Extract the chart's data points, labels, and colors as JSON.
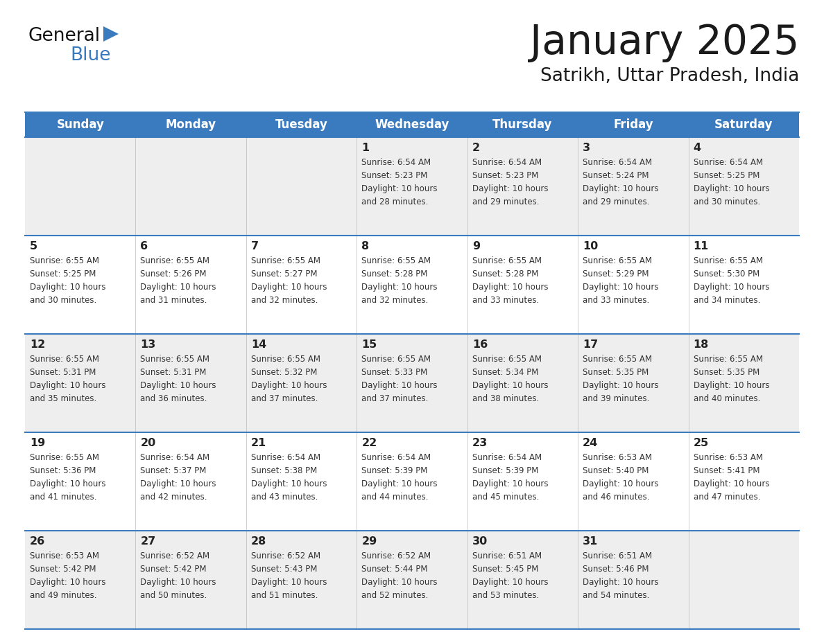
{
  "title": "January 2025",
  "subtitle": "Satrikh, Uttar Pradesh, India",
  "header_bg": "#3a7abf",
  "header_text_color": "#ffffff",
  "day_names": [
    "Sunday",
    "Monday",
    "Tuesday",
    "Wednesday",
    "Thursday",
    "Friday",
    "Saturday"
  ],
  "cell_bg_row0": "#eeeeee",
  "cell_bg_row1": "#ffffff",
  "cell_bg_row2": "#eeeeee",
  "cell_bg_row3": "#ffffff",
  "cell_bg_row4": "#eeeeee",
  "cell_border_color": "#3a7abf",
  "text_color": "#333333",
  "day_number_color": "#222222",
  "background_color": "#ffffff",
  "logo_general_color": "#111111",
  "logo_blue_color": "#3a7abf",
  "logo_triangle_color": "#3a7abf",
  "title_color": "#1a1a1a",
  "subtitle_color": "#1a1a1a",
  "calendar_data": [
    [
      {
        "day": null,
        "info": null
      },
      {
        "day": null,
        "info": null
      },
      {
        "day": null,
        "info": null
      },
      {
        "day": 1,
        "info": "Sunrise: 6:54 AM\nSunset: 5:23 PM\nDaylight: 10 hours\nand 28 minutes."
      },
      {
        "day": 2,
        "info": "Sunrise: 6:54 AM\nSunset: 5:23 PM\nDaylight: 10 hours\nand 29 minutes."
      },
      {
        "day": 3,
        "info": "Sunrise: 6:54 AM\nSunset: 5:24 PM\nDaylight: 10 hours\nand 29 minutes."
      },
      {
        "day": 4,
        "info": "Sunrise: 6:54 AM\nSunset: 5:25 PM\nDaylight: 10 hours\nand 30 minutes."
      }
    ],
    [
      {
        "day": 5,
        "info": "Sunrise: 6:55 AM\nSunset: 5:25 PM\nDaylight: 10 hours\nand 30 minutes."
      },
      {
        "day": 6,
        "info": "Sunrise: 6:55 AM\nSunset: 5:26 PM\nDaylight: 10 hours\nand 31 minutes."
      },
      {
        "day": 7,
        "info": "Sunrise: 6:55 AM\nSunset: 5:27 PM\nDaylight: 10 hours\nand 32 minutes."
      },
      {
        "day": 8,
        "info": "Sunrise: 6:55 AM\nSunset: 5:28 PM\nDaylight: 10 hours\nand 32 minutes."
      },
      {
        "day": 9,
        "info": "Sunrise: 6:55 AM\nSunset: 5:28 PM\nDaylight: 10 hours\nand 33 minutes."
      },
      {
        "day": 10,
        "info": "Sunrise: 6:55 AM\nSunset: 5:29 PM\nDaylight: 10 hours\nand 33 minutes."
      },
      {
        "day": 11,
        "info": "Sunrise: 6:55 AM\nSunset: 5:30 PM\nDaylight: 10 hours\nand 34 minutes."
      }
    ],
    [
      {
        "day": 12,
        "info": "Sunrise: 6:55 AM\nSunset: 5:31 PM\nDaylight: 10 hours\nand 35 minutes."
      },
      {
        "day": 13,
        "info": "Sunrise: 6:55 AM\nSunset: 5:31 PM\nDaylight: 10 hours\nand 36 minutes."
      },
      {
        "day": 14,
        "info": "Sunrise: 6:55 AM\nSunset: 5:32 PM\nDaylight: 10 hours\nand 37 minutes."
      },
      {
        "day": 15,
        "info": "Sunrise: 6:55 AM\nSunset: 5:33 PM\nDaylight: 10 hours\nand 37 minutes."
      },
      {
        "day": 16,
        "info": "Sunrise: 6:55 AM\nSunset: 5:34 PM\nDaylight: 10 hours\nand 38 minutes."
      },
      {
        "day": 17,
        "info": "Sunrise: 6:55 AM\nSunset: 5:35 PM\nDaylight: 10 hours\nand 39 minutes."
      },
      {
        "day": 18,
        "info": "Sunrise: 6:55 AM\nSunset: 5:35 PM\nDaylight: 10 hours\nand 40 minutes."
      }
    ],
    [
      {
        "day": 19,
        "info": "Sunrise: 6:55 AM\nSunset: 5:36 PM\nDaylight: 10 hours\nand 41 minutes."
      },
      {
        "day": 20,
        "info": "Sunrise: 6:54 AM\nSunset: 5:37 PM\nDaylight: 10 hours\nand 42 minutes."
      },
      {
        "day": 21,
        "info": "Sunrise: 6:54 AM\nSunset: 5:38 PM\nDaylight: 10 hours\nand 43 minutes."
      },
      {
        "day": 22,
        "info": "Sunrise: 6:54 AM\nSunset: 5:39 PM\nDaylight: 10 hours\nand 44 minutes."
      },
      {
        "day": 23,
        "info": "Sunrise: 6:54 AM\nSunset: 5:39 PM\nDaylight: 10 hours\nand 45 minutes."
      },
      {
        "day": 24,
        "info": "Sunrise: 6:53 AM\nSunset: 5:40 PM\nDaylight: 10 hours\nand 46 minutes."
      },
      {
        "day": 25,
        "info": "Sunrise: 6:53 AM\nSunset: 5:41 PM\nDaylight: 10 hours\nand 47 minutes."
      }
    ],
    [
      {
        "day": 26,
        "info": "Sunrise: 6:53 AM\nSunset: 5:42 PM\nDaylight: 10 hours\nand 49 minutes."
      },
      {
        "day": 27,
        "info": "Sunrise: 6:52 AM\nSunset: 5:42 PM\nDaylight: 10 hours\nand 50 minutes."
      },
      {
        "day": 28,
        "info": "Sunrise: 6:52 AM\nSunset: 5:43 PM\nDaylight: 10 hours\nand 51 minutes."
      },
      {
        "day": 29,
        "info": "Sunrise: 6:52 AM\nSunset: 5:44 PM\nDaylight: 10 hours\nand 52 minutes."
      },
      {
        "day": 30,
        "info": "Sunrise: 6:51 AM\nSunset: 5:45 PM\nDaylight: 10 hours\nand 53 minutes."
      },
      {
        "day": 31,
        "info": "Sunrise: 6:51 AM\nSunset: 5:46 PM\nDaylight: 10 hours\nand 54 minutes."
      },
      {
        "day": null,
        "info": null
      }
    ]
  ]
}
